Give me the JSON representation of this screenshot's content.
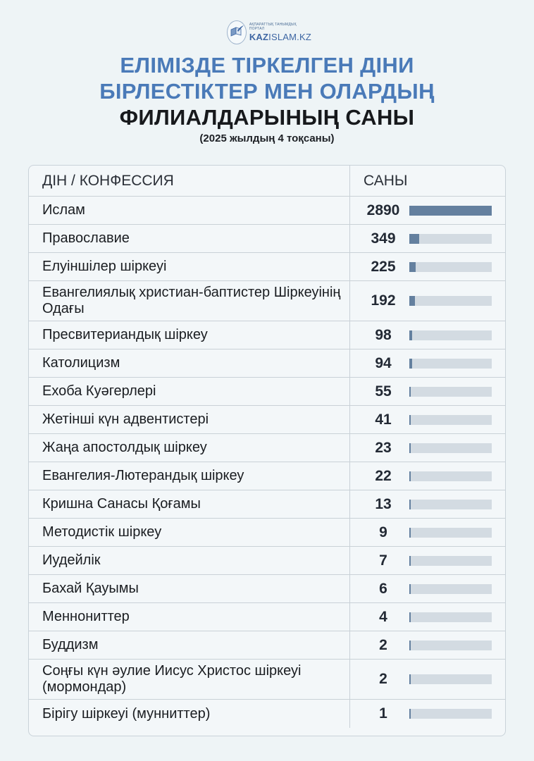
{
  "logo": {
    "tagline": "АҚПАРАТТЫҚ ТАНЫМДЫҚ ПОРТАЛ",
    "name_bold": "KAZ",
    "name_rest": "ISLAM.KZ",
    "icon": "book-quill-icon"
  },
  "title": {
    "line1": "ЕЛІМІЗДЕ ТІРКЕЛГЕН ДІНИ",
    "line2": "БІРЛЕСТІКТЕР МЕН ОЛАРДЫҢ",
    "line3": "ФИЛИАЛДАРЫНЫҢ САНЫ"
  },
  "subtitle": "(2025 жылдың 4 тоқсаны)",
  "table": {
    "headers": {
      "name": "ДІН / КОНФЕССИЯ",
      "value": "САНЫ"
    },
    "rows": [
      {
        "name": "Ислам",
        "value": "2890"
      },
      {
        "name": "Православие",
        "value": "349"
      },
      {
        "name": "Елуіншілер шіркеуі",
        "value": "225"
      },
      {
        "name": "Евангелиялық христиан-баптистер Шіркеуінің Одағы",
        "value": "192"
      },
      {
        "name": "Пресвитериандық шіркеу",
        "value": "98"
      },
      {
        "name": "Католицизм",
        "value": "94"
      },
      {
        "name": "Ехоба Куәгерлері",
        "value": "55"
      },
      {
        "name": "Жетінші күн адвентистері",
        "value": "41"
      },
      {
        "name": "Жаңа апостолдық шіркеу",
        "value": "23"
      },
      {
        "name": "Евангелия-Лютерандық шіркеу",
        "value": "22"
      },
      {
        "name": "Кришна Санасы Қоғамы",
        "value": "13"
      },
      {
        "name": "Методистік шіркеу",
        "value": "9"
      },
      {
        "name": "Иудейлік",
        "value": "7"
      },
      {
        "name": "Бахай Қауымы",
        "value": "6"
      },
      {
        "name": "Меннониттер",
        "value": "4"
      },
      {
        "name": "Буддизм",
        "value": "2"
      },
      {
        "name": "Соңғы күн әулие Иисус Христос шіркеуі (мормондар)",
        "value": "2"
      },
      {
        "name": "Бірігу шіркеуі (мунниттер)",
        "value": "1"
      }
    ]
  },
  "colors": {
    "title_blue": "#4a7ab8",
    "title_dark": "#17191c",
    "bar_fill": "#64809f",
    "bar_track": "#d3dbe2",
    "background": "#eef4f6"
  },
  "chart_data": {
    "type": "bar",
    "orientation": "horizontal",
    "title": "ЕЛІМІЗДЕ ТІРКЕЛГЕН ДІНИ БІРЛЕСТІКТЕР МЕН ОЛАРДЫҢ ФИЛИАЛДАРЫНЫҢ САНЫ",
    "subtitle": "(2025 жылдың 4 тоқсаны)",
    "xlabel": "САНЫ",
    "ylabel": "ДІН / КОНФЕССИЯ",
    "categories": [
      "Ислам",
      "Православие",
      "Елуіншілер шіркеуі",
      "Евангелиялық христиан-баптистер Шіркеуінің Одағы",
      "Пресвитериандық шіркеу",
      "Католицизм",
      "Ехоба Куәгерлері",
      "Жетінші күн адвентистері",
      "Жаңа апостолдық шіркеу",
      "Евангелия-Лютерандық шіркеу",
      "Кришна Санасы Қоғамы",
      "Методистік шіркеу",
      "Иудейлік",
      "Бахай Қауымы",
      "Меннониттер",
      "Буддизм",
      "Соңғы күн әулие Иисус Христос шіркеуі (мормондар)",
      "Бірігу шіркеуі (мунниттер)"
    ],
    "values": [
      2890,
      349,
      225,
      192,
      98,
      94,
      55,
      41,
      23,
      22,
      13,
      9,
      7,
      6,
      4,
      2,
      2,
      1
    ],
    "xlim": [
      0,
      2890
    ],
    "grid": false,
    "legend": null
  }
}
